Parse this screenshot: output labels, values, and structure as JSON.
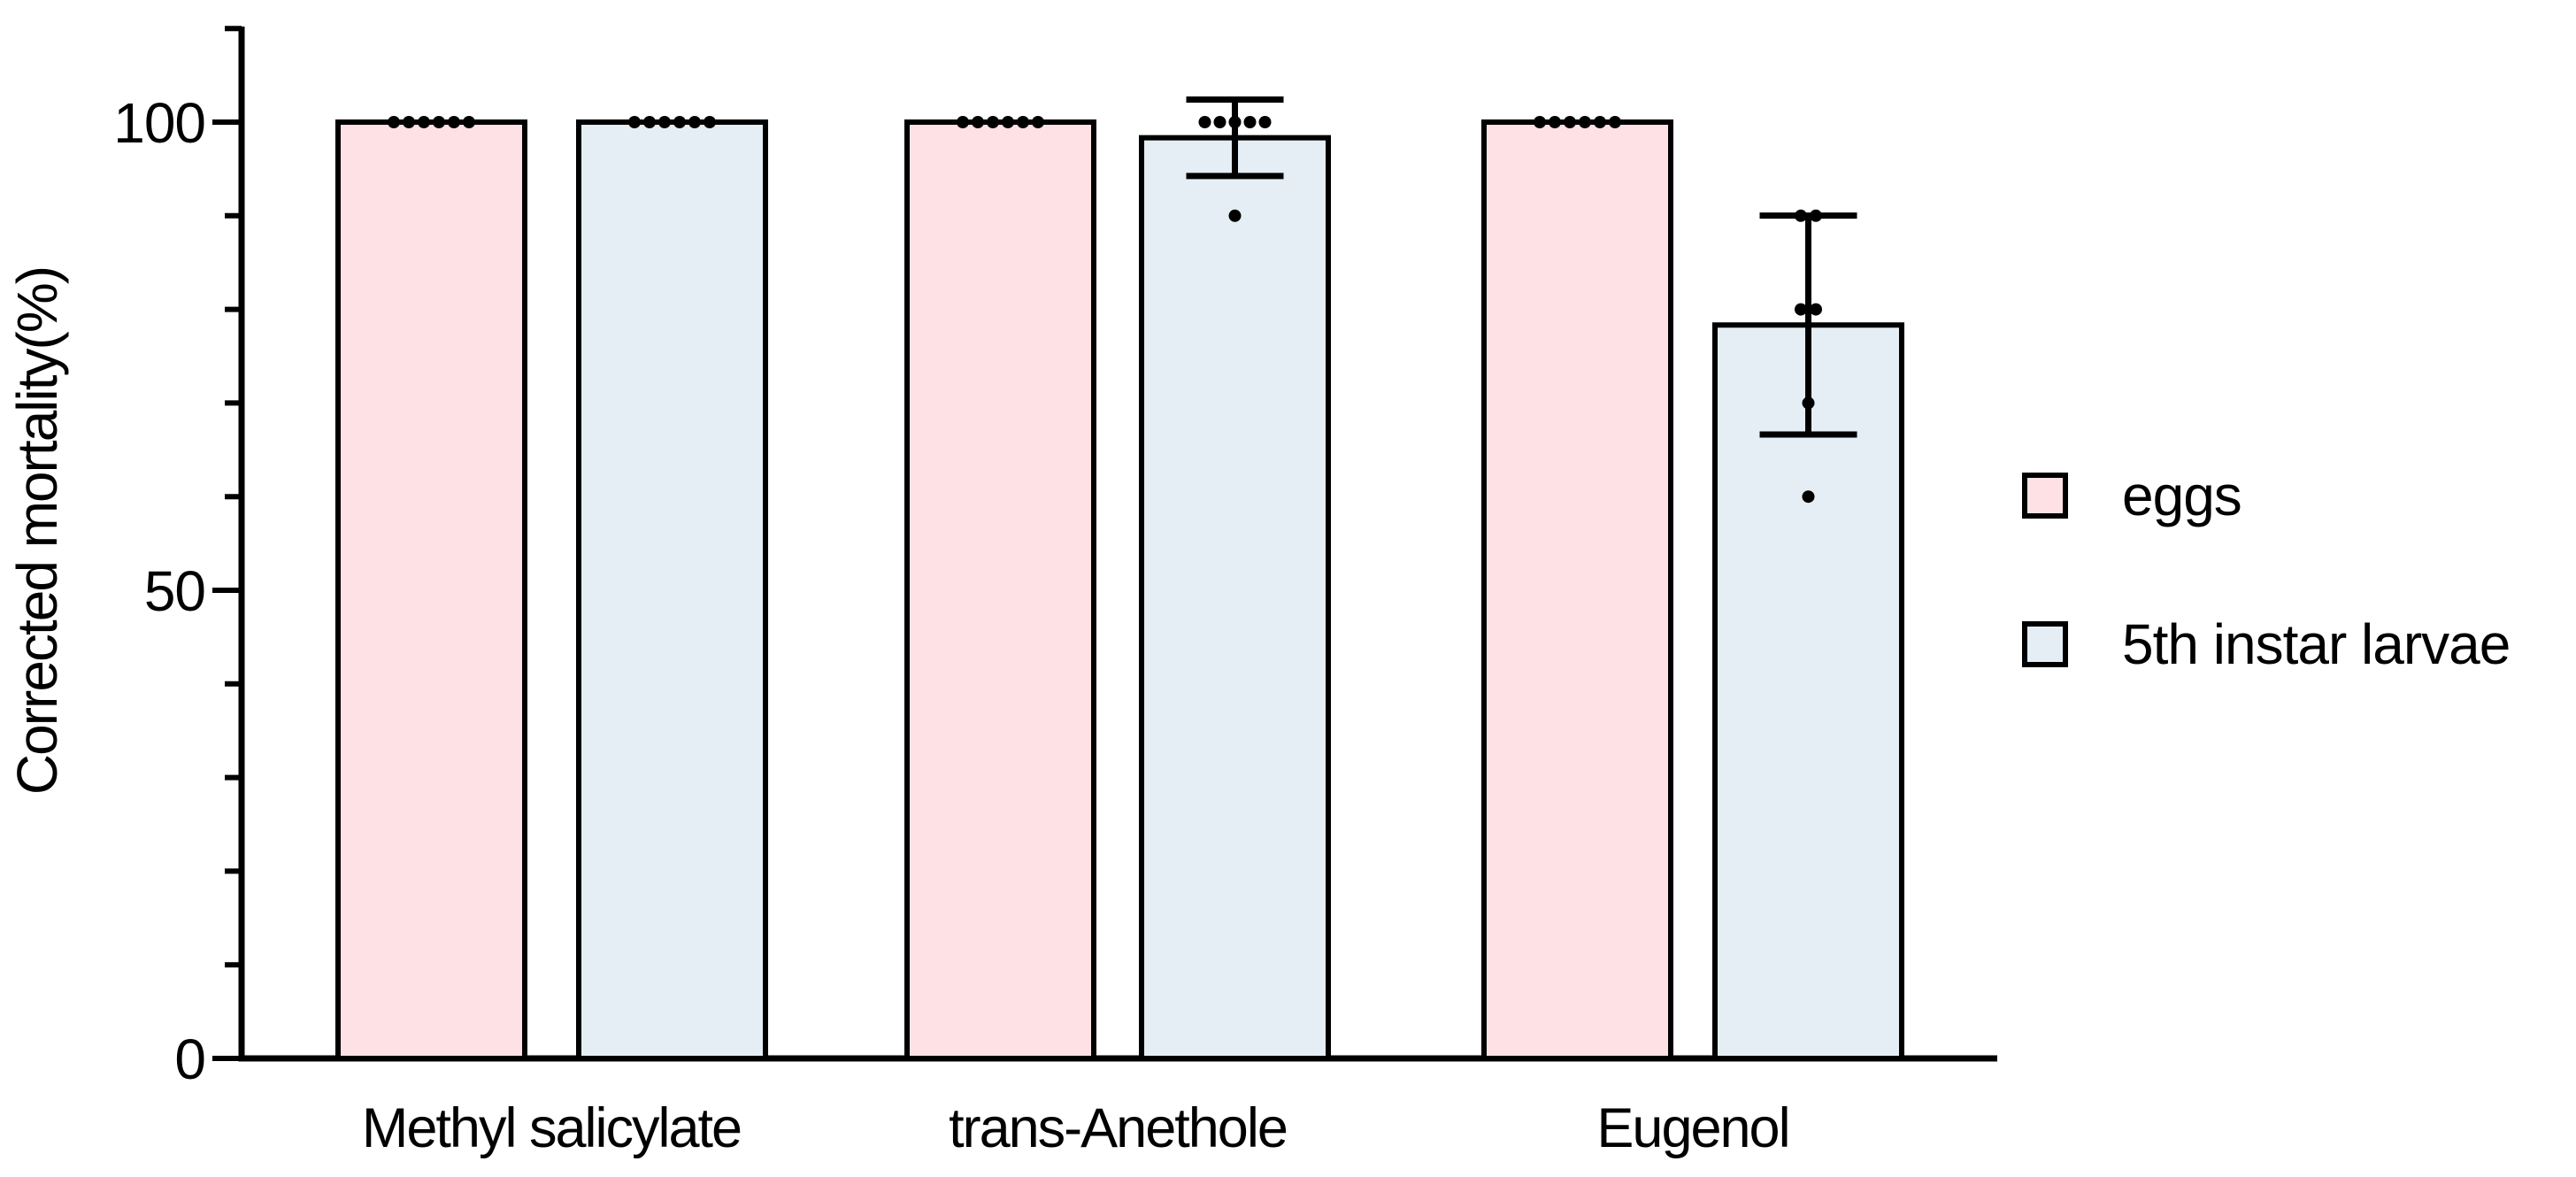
{
  "figure_background": "#ffffff",
  "axis_color": "#000000",
  "point_color": "#000000",
  "legend": {
    "items": [
      {
        "label": "eggs",
        "color": "#fde1e4"
      },
      {
        "label": "5th instar larvae",
        "color": "#e4eef4"
      }
    ]
  },
  "chart_data": {
    "type": "bar",
    "title": "",
    "xlabel": "",
    "ylabel": "Corrected mortality(%)",
    "ylim": [
      0,
      110
    ],
    "yticks_major": [
      0,
      50,
      100
    ],
    "ytick_labels": [
      "0",
      "50",
      "100"
    ],
    "ytick_minor_step": 10,
    "grid": false,
    "legend_position": "right-outside",
    "error_bars": "mean ± s.d. with caps",
    "categories": [
      "Methyl salicylate",
      "trans-Anethole",
      "Eugenol"
    ],
    "series": [
      {
        "name": "eggs",
        "fill_color": "#fde1e4",
        "border_color": "#000000",
        "means": [
          100,
          100,
          100
        ],
        "sd": [
          0,
          0,
          0
        ],
        "points": [
          [
            100,
            100,
            100,
            100,
            100,
            100
          ],
          [
            100,
            100,
            100,
            100,
            100,
            100
          ],
          [
            100,
            100,
            100,
            100,
            100,
            100
          ]
        ]
      },
      {
        "name": "5th instar larvae",
        "fill_color": "#e4eef4",
        "border_color": "#000000",
        "means": [
          100,
          98.33,
          78.33
        ],
        "sd": [
          0,
          4.08,
          11.69
        ],
        "points": [
          [
            100,
            100,
            100,
            100,
            100,
            100
          ],
          [
            100,
            100,
            100,
            100,
            100,
            90
          ],
          [
            90,
            90,
            80,
            80,
            70,
            60
          ]
        ]
      }
    ]
  }
}
